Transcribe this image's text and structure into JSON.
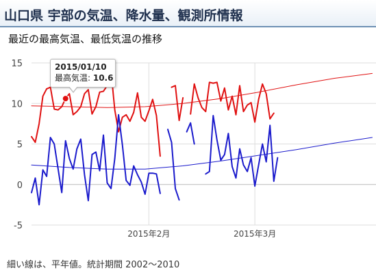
{
  "header": {
    "title": "山口県 宇部の気温、降水量、観測所情報"
  },
  "subtitle": "最近の最高気温、最低気温の推移",
  "footnote": "細い線は、平年値。統計期間 2002～2010",
  "tooltip": {
    "date": "2015/01/10",
    "label": "最高気温: ",
    "value": "10.6"
  },
  "colors": {
    "max": "#e01010",
    "min": "#1a1acc",
    "grid": "#dddddd",
    "axis": "#999999"
  },
  "chart_data": {
    "type": "line",
    "title": "",
    "xlabel": "",
    "ylabel": "",
    "ylim": [
      -5,
      15
    ],
    "yticks": [
      15,
      10,
      5,
      0,
      -5
    ],
    "xlim": [
      "2015-01-01",
      "2015-04-02"
    ],
    "x_tick_labels": [
      {
        "date": "2015-02-01",
        "label": "2015年2月"
      },
      {
        "date": "2015-03-01",
        "label": "2015年3月"
      }
    ],
    "grid": true,
    "legend": "none",
    "highlight": {
      "series": "最高気温",
      "date": "2015-01-10",
      "value": 10.6
    },
    "series": [
      {
        "name": "最高気温",
        "color": "#e01010",
        "kind": "daily",
        "points": [
          [
            "2015-01-01",
            5.9
          ],
          [
            "2015-01-02",
            5.2
          ],
          [
            "2015-01-03",
            7.5
          ],
          [
            "2015-01-04",
            10.9
          ],
          [
            "2015-01-05",
            11.8
          ],
          [
            "2015-01-06",
            12.0
          ],
          [
            "2015-01-07",
            9.3
          ],
          [
            "2015-01-08",
            9.2
          ],
          [
            "2015-01-09",
            9.6
          ],
          [
            "2015-01-10",
            10.6
          ],
          [
            "2015-01-11",
            11.2
          ],
          [
            "2015-01-12",
            8.6
          ],
          [
            "2015-01-13",
            9.0
          ],
          [
            "2015-01-14",
            9.6
          ],
          [
            "2015-01-15",
            11.2
          ],
          [
            "2015-01-16",
            11.7
          ],
          [
            "2015-01-17",
            8.7
          ],
          [
            "2015-01-18",
            9.6
          ],
          [
            "2015-01-19",
            11.4
          ],
          [
            "2015-01-20",
            11.5
          ],
          [
            "2015-01-21",
            12.2
          ],
          [
            "2015-01-22",
            14.0
          ],
          [
            "2015-01-23",
            9.2
          ],
          [
            "2015-01-24",
            6.5
          ],
          [
            "2015-01-25",
            8.3
          ],
          [
            "2015-01-26",
            8.6
          ],
          [
            "2015-01-27",
            7.8
          ],
          [
            "2015-01-28",
            8.9
          ],
          [
            "2015-01-29",
            11.3
          ],
          [
            "2015-01-30",
            8.3
          ],
          [
            "2015-01-31",
            7.8
          ],
          [
            "2015-02-01",
            9.1
          ],
          [
            "2015-02-02",
            10.5
          ],
          [
            "2015-02-03",
            8.5
          ],
          [
            "2015-02-04",
            3.5
          ],
          null,
          [
            "2015-02-07",
            12.0
          ],
          [
            "2015-02-08",
            12.2
          ],
          [
            "2015-02-09",
            7.9
          ],
          [
            "2015-02-10",
            10.7
          ],
          null,
          [
            "2015-02-12",
            8.7
          ],
          [
            "2015-02-13",
            12.4
          ],
          [
            "2015-02-14",
            10.7
          ],
          [
            "2015-02-15",
            9.5
          ],
          [
            "2015-02-16",
            9.0
          ],
          [
            "2015-02-17",
            12.6
          ],
          [
            "2015-02-18",
            12.5
          ],
          [
            "2015-02-19",
            12.6
          ],
          [
            "2015-02-20",
            10.3
          ],
          [
            "2015-02-21",
            11.9
          ],
          [
            "2015-02-22",
            9.2
          ],
          [
            "2015-02-23",
            10.9
          ],
          [
            "2015-02-24",
            8.6
          ],
          [
            "2015-02-25",
            12.2
          ],
          [
            "2015-02-26",
            9.0
          ],
          [
            "2015-02-27",
            9.8
          ],
          [
            "2015-02-28",
            10.1
          ],
          [
            "2015-03-01",
            7.7
          ],
          [
            "2015-03-02",
            10.5
          ],
          [
            "2015-03-03",
            12.4
          ],
          [
            "2015-03-04",
            11.2
          ],
          [
            "2015-03-05",
            8.1
          ],
          [
            "2015-03-06",
            8.8
          ]
        ]
      },
      {
        "name": "最低気温",
        "color": "#1a1acc",
        "kind": "daily",
        "points": [
          [
            "2015-01-01",
            -1.0
          ],
          [
            "2015-01-02",
            0.8
          ],
          [
            "2015-01-03",
            -2.5
          ],
          [
            "2015-01-04",
            1.8
          ],
          [
            "2015-01-05",
            1.0
          ],
          [
            "2015-01-06",
            5.8
          ],
          [
            "2015-01-07",
            5.0
          ],
          [
            "2015-01-08",
            2.0
          ],
          [
            "2015-01-09",
            -1.0
          ],
          [
            "2015-01-10",
            5.4
          ],
          [
            "2015-01-11",
            3.2
          ],
          [
            "2015-01-12",
            1.9
          ],
          [
            "2015-01-13",
            4.4
          ],
          [
            "2015-01-14",
            5.6
          ],
          [
            "2015-01-15",
            1.2
          ],
          [
            "2015-01-16",
            -2.0
          ],
          [
            "2015-01-17",
            3.7
          ],
          [
            "2015-01-18",
            4.0
          ],
          [
            "2015-01-19",
            1.7
          ],
          [
            "2015-01-20",
            6.1
          ],
          [
            "2015-01-21",
            0.2
          ],
          [
            "2015-01-22",
            -0.5
          ],
          [
            "2015-01-23",
            3.2
          ],
          [
            "2015-01-24",
            8.6
          ],
          [
            "2015-01-25",
            4.9
          ],
          [
            "2015-01-26",
            0.5
          ],
          [
            "2015-01-27",
            -0.1
          ],
          [
            "2015-01-28",
            2.3
          ],
          [
            "2015-01-29",
            1.2
          ],
          [
            "2015-01-30",
            0.3
          ],
          [
            "2015-01-31",
            -1.2
          ],
          [
            "2015-02-01",
            1.4
          ],
          [
            "2015-02-02",
            1.4
          ],
          [
            "2015-02-03",
            1.3
          ],
          [
            "2015-02-04",
            -1.1
          ],
          null,
          [
            "2015-02-06",
            6.8
          ],
          [
            "2015-02-07",
            5.2
          ],
          [
            "2015-02-08",
            -0.5
          ],
          [
            "2015-02-09",
            -1.9
          ],
          null,
          [
            "2015-02-11",
            6.5
          ],
          [
            "2015-02-12",
            7.6
          ],
          [
            "2015-02-13",
            5.0
          ],
          null,
          [
            "2015-02-16",
            1.3
          ],
          [
            "2015-02-17",
            1.6
          ],
          [
            "2015-02-18",
            8.5
          ],
          [
            "2015-02-19",
            5.5
          ],
          [
            "2015-02-20",
            3.0
          ],
          [
            "2015-02-21",
            3.7
          ],
          [
            "2015-02-22",
            6.3
          ],
          [
            "2015-02-23",
            2.2
          ],
          [
            "2015-02-24",
            0.8
          ],
          [
            "2015-02-25",
            4.4
          ],
          [
            "2015-02-26",
            2.4
          ],
          [
            "2015-02-27",
            1.6
          ],
          [
            "2015-02-28",
            3.3
          ],
          [
            "2015-03-01",
            -0.2
          ],
          [
            "2015-03-02",
            2.4
          ],
          [
            "2015-03-03",
            5.0
          ],
          [
            "2015-03-04",
            2.8
          ],
          [
            "2015-03-05",
            7.3
          ],
          [
            "2015-03-06",
            0.4
          ],
          [
            "2015-03-07",
            3.3
          ]
        ]
      },
      {
        "name": "最高気温 平年値",
        "color": "#e01010",
        "kind": "normal",
        "points": [
          [
            "2015-01-01",
            9.7
          ],
          [
            "2015-01-11",
            9.6
          ],
          [
            "2015-01-21",
            9.5
          ],
          [
            "2015-01-31",
            9.6
          ],
          [
            "2015-02-10",
            10.0
          ],
          [
            "2015-02-20",
            10.6
          ],
          [
            "2015-03-02",
            11.4
          ],
          [
            "2015-03-12",
            12.3
          ],
          [
            "2015-03-22",
            13.1
          ],
          [
            "2015-04-01",
            13.7
          ]
        ]
      },
      {
        "name": "最低気温 平年値",
        "color": "#1a1acc",
        "kind": "normal",
        "points": [
          [
            "2015-01-01",
            2.4
          ],
          [
            "2015-01-11",
            2.1
          ],
          [
            "2015-01-21",
            1.9
          ],
          [
            "2015-01-31",
            1.9
          ],
          [
            "2015-02-10",
            2.3
          ],
          [
            "2015-02-20",
            2.9
          ],
          [
            "2015-03-02",
            3.6
          ],
          [
            "2015-03-12",
            4.3
          ],
          [
            "2015-03-22",
            5.1
          ],
          [
            "2015-04-01",
            5.8
          ]
        ]
      }
    ]
  }
}
